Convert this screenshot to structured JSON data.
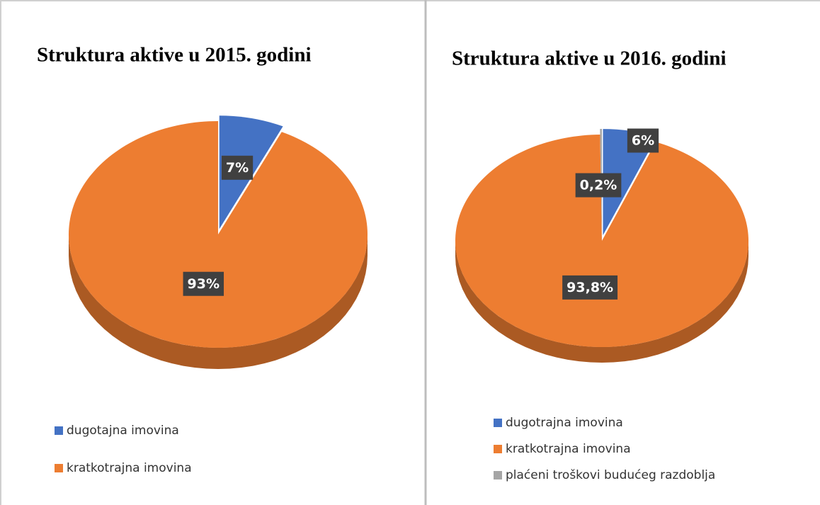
{
  "chart_data": [
    {
      "type": "pie",
      "title": "Struktura aktive u 2015. godini",
      "categories": [
        "dugotajna imovina",
        "kratkotrajna imovina"
      ],
      "values": [
        7,
        93
      ],
      "value_labels": [
        "7%",
        "93%"
      ],
      "colors": [
        "#4472c4",
        "#ed7d31"
      ],
      "legend": "bottom-left"
    },
    {
      "type": "pie",
      "title": "Struktura aktive u 2016. godini",
      "categories": [
        "dugotrajna imovina",
        "kratkotrajna imovina",
        "plaćeni troškovi budućeg razdoblja"
      ],
      "values": [
        6,
        93.8,
        0.2
      ],
      "value_labels": [
        "6%",
        "93,8%",
        "0,2%"
      ],
      "colors": [
        "#4472c4",
        "#ed7d31",
        "#a5a5a5"
      ],
      "legend": "bottom-left"
    }
  ]
}
